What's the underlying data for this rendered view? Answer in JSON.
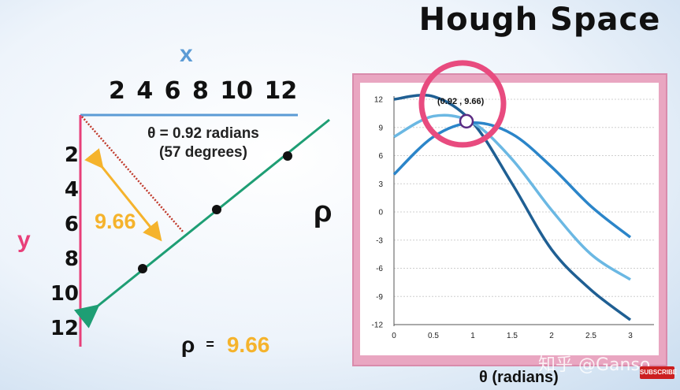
{
  "title": "Hough Space",
  "image_space": {
    "x_label": "x",
    "x_ticks": [
      "2",
      "4",
      "6",
      "8",
      "10",
      "12"
    ],
    "y_label": "y",
    "y_ticks": [
      "2",
      "4",
      "6",
      "8",
      "10",
      "12"
    ],
    "theta_line1": "θ = 0.92 radians",
    "theta_line2": "(57 degrees)",
    "distance_label": "9.66",
    "rho_symbol": "ρ",
    "rho_value_symbol": "ρ",
    "rho_equals": "=",
    "rho_value": "9.66",
    "colors": {
      "x_axis": "#5b9bd5",
      "y_axis": "#e83f79",
      "line": "#1e9e74",
      "distance": "#f5b32c",
      "normal": "#c0392b"
    }
  },
  "chart_data": {
    "type": "line",
    "xlabel": "θ (radians)",
    "ylabel": "",
    "xlim": [
      0,
      3
    ],
    "ylim": [
      -12,
      12
    ],
    "x_ticks": [
      "0",
      "0.5",
      "1",
      "1.5",
      "2",
      "2.5",
      "3"
    ],
    "y_ticks": [
      "12",
      "9",
      "6",
      "3",
      "0",
      "-3",
      "-6",
      "-9",
      "-12"
    ],
    "grid": true,
    "series": [
      {
        "color": "#1f5f93",
        "points": [
          [
            0,
            12
          ],
          [
            0.5,
            12.3
          ],
          [
            1,
            9.5
          ],
          [
            1.5,
            3.0
          ],
          [
            2,
            -4.0
          ],
          [
            2.5,
            -8.3
          ],
          [
            3,
            -11.5
          ]
        ]
      },
      {
        "color": "#6bb8e3",
        "points": [
          [
            0,
            8
          ],
          [
            0.5,
            10.2
          ],
          [
            1,
            9.5
          ],
          [
            1.5,
            5.6
          ],
          [
            2,
            0.2
          ],
          [
            2.5,
            -4.5
          ],
          [
            3,
            -7.2
          ]
        ]
      },
      {
        "color": "#2b85c9",
        "points": [
          [
            0,
            4
          ],
          [
            0.5,
            8.0
          ],
          [
            1,
            9.5
          ],
          [
            1.5,
            8.3
          ],
          [
            2,
            4.8
          ],
          [
            2.5,
            0.6
          ],
          [
            3,
            -2.7
          ]
        ]
      }
    ],
    "highlight": {
      "theta": 0.92,
      "rho": 9.66,
      "label": "(0.92 , 9.66)",
      "circle_color": "#e84b7f"
    }
  },
  "watermark": "知乎 @Ganso",
  "subscribe_label": "SUBSCRIBE"
}
